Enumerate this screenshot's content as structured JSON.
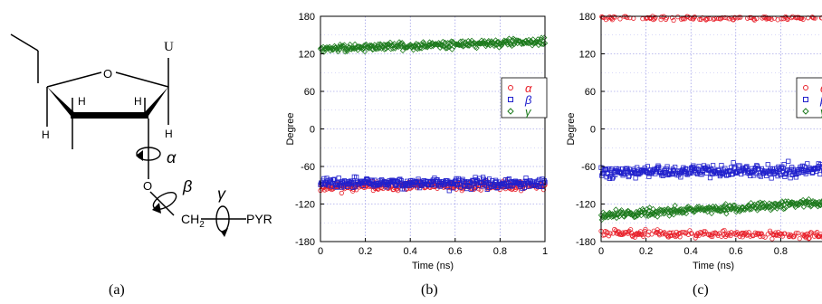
{
  "structure": {
    "base_label": "U",
    "ring_oxygen": "O",
    "hydrogens": [
      "H",
      "H",
      "H",
      "H"
    ],
    "chain_ch2": "CH",
    "chain_ch2_sub": "2",
    "chain_pyr": "PYR",
    "angles": [
      "α",
      "β",
      "γ"
    ]
  },
  "panel_labels": [
    "(a)",
    "(b)",
    "(c)"
  ],
  "chart_data": [
    {
      "type": "scatter",
      "xlabel": "Time (ns)",
      "ylabel": "Degree",
      "xlim": [
        0,
        1
      ],
      "ylim": [
        -180,
        180
      ],
      "xticks": [
        0,
        0.2,
        0.4,
        0.6,
        0.8,
        1
      ],
      "yticks": [
        180,
        120,
        60,
        0,
        -60,
        -120,
        -180
      ],
      "grid": true,
      "legend_position": "right",
      "series": [
        {
          "name": "α",
          "color": "#e8202a",
          "marker": "circle",
          "mean_start": -92,
          "mean_end": -90,
          "spread": 5
        },
        {
          "name": "β",
          "color": "#2020cc",
          "marker": "square",
          "mean_start": -86,
          "mean_end": -88,
          "spread": 6
        },
        {
          "name": "γ",
          "color": "#1e7b1e",
          "marker": "diamond",
          "mean_start": 128,
          "mean_end": 140,
          "spread": 4
        }
      ]
    },
    {
      "type": "scatter",
      "xlabel": "Time (ns)",
      "ylabel": "Degree",
      "xlim": [
        0,
        1
      ],
      "ylim": [
        -180,
        180
      ],
      "xticks": [
        0,
        0.2,
        0.4,
        0.6,
        0.8
      ],
      "yticks": [
        180,
        120,
        60,
        0,
        -60,
        -120,
        -180
      ],
      "grid": true,
      "legend_position": "right",
      "series": [
        {
          "name": "α",
          "color": "#e8202a",
          "marker": "circle",
          "mean_start": -166,
          "mean_end": -170,
          "spread": 4,
          "extra_mean": 177,
          "extra_spread": 2
        },
        {
          "name": "β",
          "color": "#2020cc",
          "marker": "square",
          "mean_start": -70,
          "mean_end": -65,
          "spread": 7
        },
        {
          "name": "γ",
          "color": "#1e7b1e",
          "marker": "diamond",
          "mean_start": -138,
          "mean_end": -118,
          "spread": 5
        }
      ]
    }
  ]
}
